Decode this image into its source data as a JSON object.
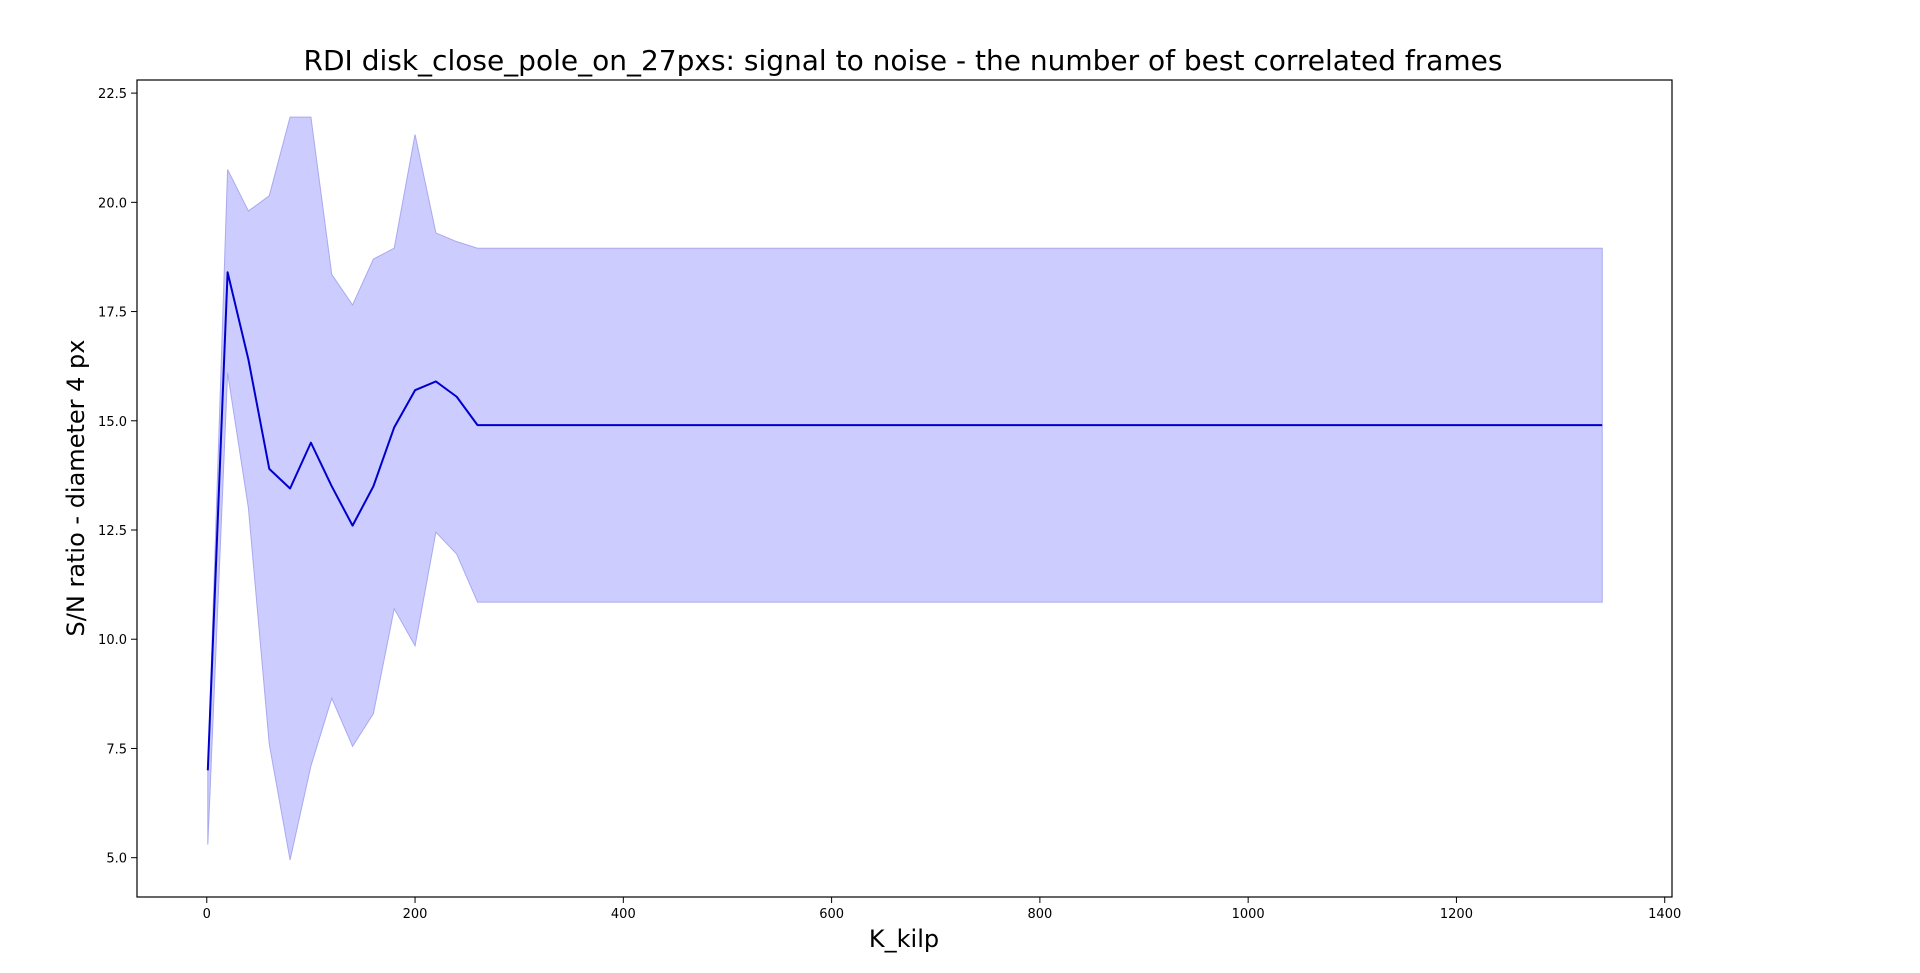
{
  "chart_data": {
    "type": "line",
    "title": "RDI disk_close_pole_on_27pxs: signal to noise - the number of best correlated frames",
    "xlabel": "K_kilp",
    "ylabel": "S/N ratio - diameter 4 px",
    "xlim": [
      -67,
      1407
    ],
    "ylim": [
      4.1,
      22.8
    ],
    "x_ticks": [
      0,
      200,
      400,
      600,
      800,
      1000,
      1200,
      1400
    ],
    "y_ticks": [
      5.0,
      7.5,
      10.0,
      12.5,
      15.0,
      17.5,
      20.0,
      22.5
    ],
    "x_tick_labels": [
      "0",
      "200",
      "400",
      "600",
      "800",
      "1000",
      "1200",
      "1400"
    ],
    "y_tick_labels": [
      "5.0",
      "7.5",
      "10.0",
      "12.5",
      "15.0",
      "17.5",
      "20.0",
      "22.5"
    ],
    "grid": false,
    "line_color": "#0000cc",
    "band_fill": "#ccccff",
    "band_stroke": "#a9a9f0",
    "series": [
      {
        "x": [
          1,
          20,
          40,
          60,
          80,
          100,
          120,
          140,
          160,
          180,
          200,
          220,
          240,
          260,
          280,
          300,
          400,
          600,
          800,
          1000,
          1200,
          1340
        ],
        "values": [
          7.0,
          18.4,
          16.4,
          13.9,
          13.45,
          14.5,
          13.5,
          12.6,
          13.5,
          14.85,
          15.7,
          15.9,
          15.55,
          14.9,
          14.9,
          14.9,
          14.9,
          14.9,
          14.9,
          14.9,
          14.9,
          14.9
        ],
        "upper": [
          7.0,
          20.75,
          19.8,
          20.15,
          21.95,
          21.95,
          18.35,
          17.65,
          18.7,
          18.95,
          21.55,
          19.3,
          19.1,
          18.95,
          18.95,
          18.95,
          18.95,
          18.95,
          18.95,
          18.95,
          18.95,
          18.95
        ],
        "lower": [
          5.3,
          16.1,
          13.0,
          7.6,
          4.95,
          7.1,
          8.65,
          7.55,
          8.3,
          10.7,
          9.85,
          12.45,
          11.95,
          10.85,
          10.85,
          10.85,
          10.85,
          10.85,
          10.85,
          10.85,
          10.85,
          10.85
        ]
      }
    ]
  }
}
